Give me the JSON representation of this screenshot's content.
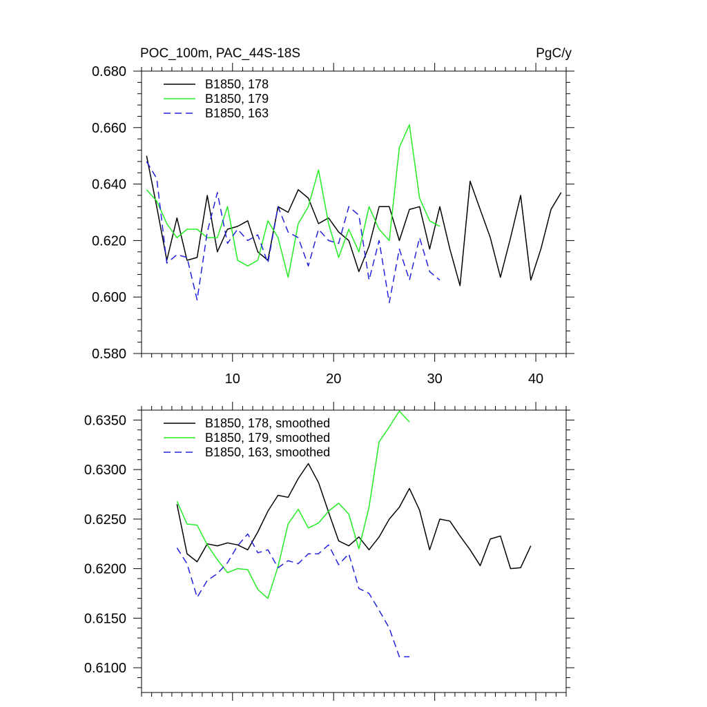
{
  "colors": {
    "line_178": "#000000",
    "line_179": "#22ee22",
    "line_163": "#2020dd"
  },
  "chart_data": [
    {
      "type": "line",
      "title_left": "POC_100m, PAC_44S-18S",
      "title_right": "PgC/y",
      "xlim": [
        1,
        43
      ],
      "ylim": [
        0.58,
        0.68
      ],
      "x_ticks": [
        10,
        20,
        30,
        40
      ],
      "x_tick_labels": [
        "10",
        "20",
        "30",
        "40"
      ],
      "y_ticks": [
        0.58,
        0.6,
        0.62,
        0.64,
        0.66,
        0.68
      ],
      "y_tick_labels": [
        "0.580",
        "0.600",
        "0.620",
        "0.640",
        "0.660",
        "0.680"
      ],
      "legend_position": "top-left",
      "series": [
        {
          "name": "B1850, 178",
          "color_key": "line_178",
          "dash": "solid",
          "x": [
            1.5,
            2.5,
            3.5,
            4.5,
            5.5,
            6.5,
            7.5,
            8.5,
            9.5,
            10.5,
            11.5,
            12.5,
            13.5,
            14.5,
            15.5,
            16.5,
            17.5,
            18.5,
            19.5,
            20.5,
            21.5,
            22.5,
            23.5,
            24.5,
            25.5,
            26.5,
            27.5,
            28.5,
            29.5,
            30.5,
            31.5,
            32.5,
            33.5,
            34.5,
            35.5,
            36.5,
            37.5,
            38.5,
            39.5,
            40.5,
            41.5,
            42.5
          ],
          "values": [
            0.65,
            0.632,
            0.613,
            0.628,
            0.613,
            0.614,
            0.636,
            0.616,
            0.624,
            0.625,
            0.627,
            0.616,
            0.613,
            0.632,
            0.63,
            0.638,
            0.635,
            0.626,
            0.628,
            0.623,
            0.62,
            0.609,
            0.618,
            0.632,
            0.632,
            0.62,
            0.631,
            0.632,
            0.617,
            0.632,
            0.617,
            0.604,
            0.641,
            0.631,
            0.621,
            0.607,
            0.621,
            0.636,
            0.606,
            0.617,
            0.631,
            0.637
          ]
        },
        {
          "name": "B1850, 179",
          "color_key": "line_179",
          "dash": "solid",
          "x": [
            1.5,
            2.5,
            3.5,
            4.5,
            5.5,
            6.5,
            7.5,
            8.5,
            9.5,
            10.5,
            11.5,
            12.5,
            13.5,
            14.5,
            15.5,
            16.5,
            17.5,
            18.5,
            19.5,
            20.5,
            21.5,
            22.5,
            23.5,
            24.5,
            25.5,
            26.5,
            27.5,
            28.5,
            29.5,
            30.5
          ],
          "values": [
            0.638,
            0.634,
            0.626,
            0.621,
            0.624,
            0.624,
            0.621,
            0.621,
            0.632,
            0.613,
            0.611,
            0.613,
            0.627,
            0.621,
            0.607,
            0.626,
            0.632,
            0.645,
            0.626,
            0.614,
            0.624,
            0.616,
            0.632,
            0.624,
            0.62,
            0.653,
            0.661,
            0.635,
            0.627,
            0.625
          ]
        },
        {
          "name": "B1850, 163",
          "color_key": "line_163",
          "dash": "dashed",
          "x": [
            1.5,
            2.5,
            3.5,
            4.5,
            5.5,
            6.5,
            7.5,
            8.5,
            9.5,
            10.5,
            11.5,
            12.5,
            13.5,
            14.5,
            15.5,
            16.5,
            17.5,
            18.5,
            19.5,
            20.5,
            21.5,
            22.5,
            23.5,
            24.5,
            25.5,
            26.5,
            27.5,
            28.5,
            29.5,
            30.5
          ],
          "values": [
            0.648,
            0.642,
            0.612,
            0.615,
            0.614,
            0.599,
            0.623,
            0.637,
            0.619,
            0.624,
            0.62,
            0.622,
            0.612,
            0.632,
            0.623,
            0.621,
            0.611,
            0.624,
            0.62,
            0.619,
            0.632,
            0.629,
            0.606,
            0.62,
            0.598,
            0.617,
            0.606,
            0.621,
            0.609,
            0.606
          ]
        }
      ]
    },
    {
      "type": "line",
      "xlim": [
        1,
        43
      ],
      "ylim": [
        0.6075,
        0.636
      ],
      "x_ticks": [
        10,
        20,
        30,
        40
      ],
      "y_ticks": [
        0.61,
        0.615,
        0.62,
        0.625,
        0.63,
        0.635
      ],
      "y_tick_labels": [
        "0.6100",
        "0.6150",
        "0.6200",
        "0.6250",
        "0.6300",
        "0.6350"
      ],
      "legend_position": "top-left",
      "series": [
        {
          "name": "B1850, 178, smoothed",
          "color_key": "line_178",
          "dash": "solid",
          "x": [
            4.5,
            5.5,
            6.5,
            7.5,
            8.5,
            9.5,
            10.5,
            11.5,
            12.5,
            13.5,
            14.5,
            15.5,
            16.5,
            17.5,
            18.5,
            19.5,
            20.5,
            21.5,
            22.5,
            23.5,
            24.5,
            25.5,
            26.5,
            27.5,
            28.5,
            29.5,
            30.5,
            31.5,
            32.5,
            33.5,
            34.5,
            35.5,
            36.5,
            37.5,
            38.5,
            39.5
          ],
          "values": [
            0.6265,
            0.6215,
            0.6207,
            0.6225,
            0.6223,
            0.6226,
            0.6224,
            0.6219,
            0.6237,
            0.6258,
            0.6274,
            0.6272,
            0.6291,
            0.6306,
            0.6287,
            0.6257,
            0.6228,
            0.6223,
            0.6232,
            0.6219,
            0.6232,
            0.625,
            0.6262,
            0.6281,
            0.6259,
            0.6219,
            0.625,
            0.6248,
            0.6233,
            0.6219,
            0.6203,
            0.623,
            0.6233,
            0.62,
            0.6201,
            0.6223
          ]
        },
        {
          "name": "B1850, 179, smoothed",
          "color_key": "line_179",
          "dash": "solid",
          "x": [
            4.5,
            5.5,
            6.5,
            7.5,
            8.5,
            9.5,
            10.5,
            11.5,
            12.5,
            13.5,
            14.5,
            15.5,
            16.5,
            17.5,
            18.5,
            19.5,
            20.5,
            21.5,
            22.5,
            23.5,
            24.5,
            25.5,
            26.5,
            27.5
          ],
          "values": [
            0.6268,
            0.6245,
            0.6244,
            0.6224,
            0.6209,
            0.6196,
            0.62,
            0.6199,
            0.6179,
            0.617,
            0.6202,
            0.6245,
            0.626,
            0.6241,
            0.6246,
            0.6258,
            0.6266,
            0.6255,
            0.622,
            0.6262,
            0.6328,
            0.6343,
            0.6359,
            0.6348
          ]
        },
        {
          "name": "B1850, 163, smoothed",
          "color_key": "line_163",
          "dash": "dashed",
          "x": [
            4.5,
            5.5,
            6.5,
            7.5,
            8.5,
            9.5,
            10.5,
            11.5,
            12.5,
            13.5,
            14.5,
            15.5,
            16.5,
            17.5,
            18.5,
            19.5,
            20.5,
            21.5,
            22.5,
            23.5,
            24.5,
            25.5,
            26.5,
            27.5
          ],
          "values": [
            0.6221,
            0.6205,
            0.6171,
            0.6188,
            0.6195,
            0.6206,
            0.6223,
            0.6235,
            0.6216,
            0.6219,
            0.6201,
            0.6208,
            0.6205,
            0.6215,
            0.6215,
            0.6224,
            0.6204,
            0.6215,
            0.618,
            0.6175,
            0.6158,
            0.614,
            0.6111,
            0.6111
          ]
        }
      ]
    }
  ]
}
